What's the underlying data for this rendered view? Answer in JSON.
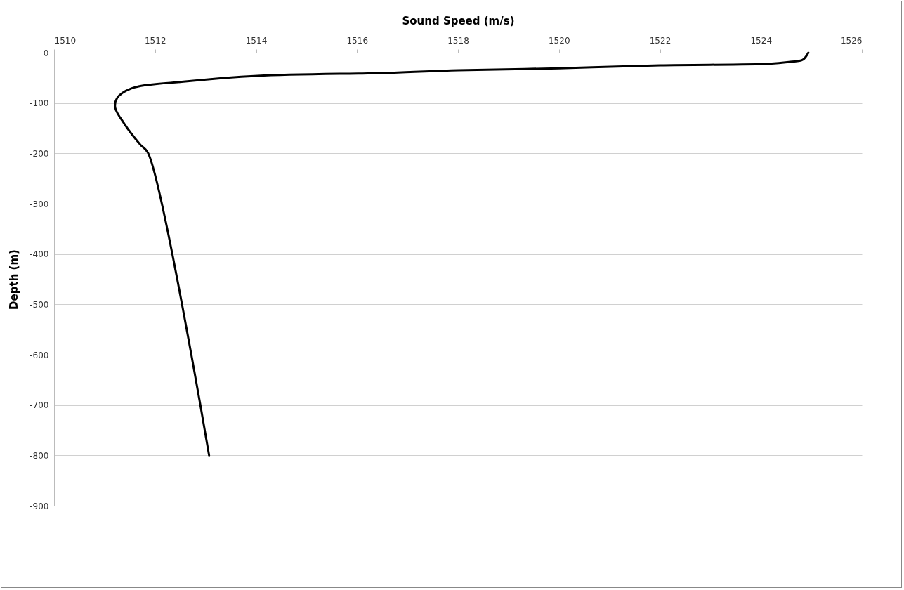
{
  "chart_data": {
    "type": "line",
    "xlabel": "Sound Speed (m/s)",
    "ylabel": "Depth (m)",
    "xlim": [
      1510,
      1526
    ],
    "xticks": [
      1510,
      1512,
      1514,
      1516,
      1518,
      1520,
      1522,
      1524,
      1526
    ],
    "ylim": [
      -900,
      0
    ],
    "yticks": [
      0,
      -100,
      -200,
      -300,
      -400,
      -500,
      -600,
      -700,
      -800,
      -900
    ],
    "grid": "y",
    "legend": false,
    "marker": "none",
    "line_style": "solid",
    "series": [
      {
        "color": "#000000",
        "x": [
          1524.94,
          1524.83,
          1524.58,
          1524.17,
          1522,
          1520,
          1518,
          1516.67,
          1514.03,
          1512.64,
          1511.53,
          1511.25,
          1511.21,
          1511.39,
          1511.71,
          1511.86,
          1513.07
        ],
        "values": [
          0,
          -14,
          -18,
          -22,
          -25,
          -31,
          -35,
          -40,
          -46,
          -57,
          -71,
          -90,
          -109,
          -141,
          -183,
          -199,
          -800
        ]
      }
    ]
  }
}
